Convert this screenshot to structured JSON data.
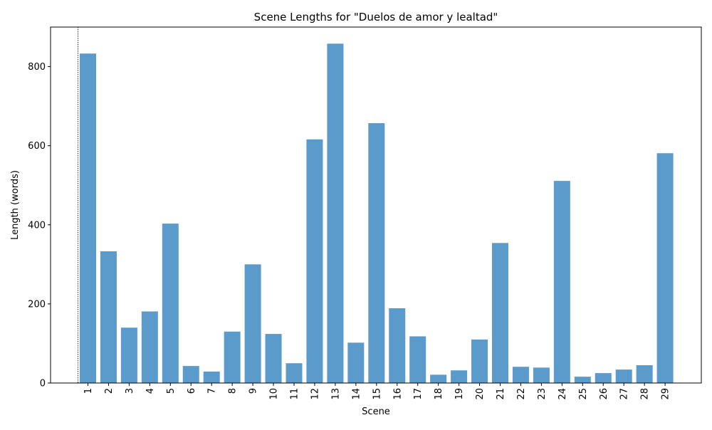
{
  "chart_data": {
    "type": "bar",
    "title": "Scene Lengths for \"Duelos de amor y lealtad\"",
    "xlabel": "Scene",
    "ylabel": "Length (words)",
    "categories": [
      "1",
      "2",
      "3",
      "4",
      "5",
      "6",
      "7",
      "8",
      "9",
      "10",
      "11",
      "12",
      "13",
      "14",
      "15",
      "16",
      "17",
      "18",
      "19",
      "20",
      "21",
      "22",
      "23",
      "24",
      "25",
      "26",
      "27",
      "28",
      "29"
    ],
    "values": [
      833,
      333,
      140,
      181,
      403,
      43,
      29,
      130,
      300,
      124,
      50,
      616,
      858,
      102,
      657,
      189,
      118,
      21,
      32,
      110,
      354,
      41,
      39,
      511,
      16,
      25,
      34,
      45,
      581
    ],
    "ylim": [
      0,
      900
    ],
    "yticks": [
      0,
      200,
      400,
      600,
      800
    ],
    "bar_color": "#5b9bcb",
    "grid": false,
    "legend": "none",
    "marker_line": {
      "style": "dotted",
      "color": "#000000"
    }
  }
}
